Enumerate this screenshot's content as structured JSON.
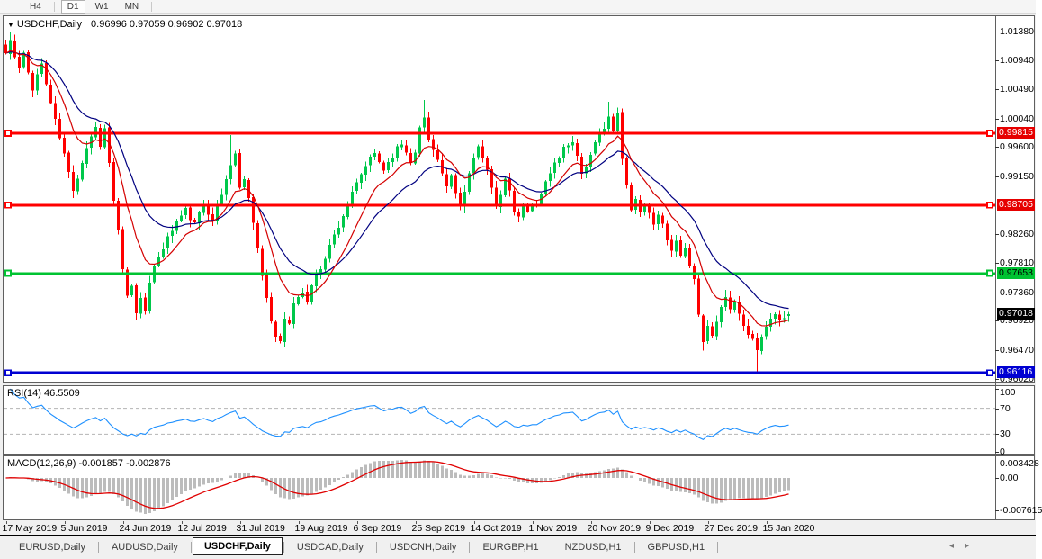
{
  "toolbar": {
    "items": [
      {
        "type": "button",
        "label": "H4",
        "active": false
      },
      {
        "type": "separator"
      },
      {
        "type": "button",
        "label": "D1",
        "active": true
      },
      {
        "type": "button",
        "label": "W1",
        "active": false
      },
      {
        "type": "button",
        "label": "MN",
        "active": false
      },
      {
        "type": "separator"
      }
    ]
  },
  "chart": {
    "menu_arrow": "▼",
    "title_symbol": "USDCHF,Daily",
    "title_ohlc": "0.96996 0.97059 0.96902 0.97018"
  },
  "panes": {
    "rsi_label": "RSI(14) 46.5509",
    "macd_label": "MACD(12,26,9) -0.001857 -0.002876"
  },
  "tabs": {
    "items": [
      {
        "label": "EURUSD,Daily",
        "active": false
      },
      {
        "label": "AUDUSD,Daily",
        "active": false
      },
      {
        "label": "USDCHF,Daily",
        "active": true
      },
      {
        "label": "USDCAD,Daily",
        "active": false
      },
      {
        "label": "USDCNH,Daily",
        "active": false
      },
      {
        "label": "EURGBP,H1",
        "active": false
      },
      {
        "label": "NZDUSD,H1",
        "active": false
      },
      {
        "label": "GBPUSD,H1",
        "active": false
      }
    ],
    "scroll_left": "◂",
    "scroll_right": "▸"
  },
  "chart_data": {
    "type": "candlestick",
    "symbol": "USDCHF",
    "period": "Daily",
    "last_bar": {
      "open": 0.96996,
      "high": 0.97059,
      "low": 0.96902,
      "close": 0.97018
    },
    "current_price": 0.97018,
    "price_axis": {
      "ticks": [
        {
          "label": "1.01380",
          "value": 1.0138
        },
        {
          "label": "1.00940",
          "value": 1.0094
        },
        {
          "label": "1.00490",
          "value": 1.0049
        },
        {
          "label": "1.00040",
          "value": 1.0004
        },
        {
          "label": "0.99600",
          "value": 0.996
        },
        {
          "label": "0.99150",
          "value": 0.9915
        },
        {
          "label": "0.98260",
          "value": 0.9826
        },
        {
          "label": "0.97810",
          "value": 0.9781
        },
        {
          "label": "0.97360",
          "value": 0.9736
        },
        {
          "label": "0.96920",
          "value": 0.9692
        },
        {
          "label": "0.96470",
          "value": 0.9647
        },
        {
          "label": "0.96020",
          "value": 0.9602
        }
      ],
      "badges": [
        {
          "label": "0.99815",
          "value": 0.99815,
          "bg": "#e60000",
          "fg": "#ffffff"
        },
        {
          "label": "0.98705",
          "value": 0.98705,
          "bg": "#e60000",
          "fg": "#ffffff"
        },
        {
          "label": "0.97653",
          "value": 0.97653,
          "bg": "#00c332",
          "fg": "#000000"
        },
        {
          "label": "0.97018",
          "value": 0.97018,
          "bg": "#000000",
          "fg": "#ffffff"
        },
        {
          "label": "0.96116",
          "value": 0.96116,
          "bg": "#0000d2",
          "fg": "#ffffff"
        }
      ]
    },
    "time_axis": {
      "labels": [
        {
          "label": "17 May 2019",
          "bar": 0
        },
        {
          "label": "5 Jun 2019",
          "bar": 13
        },
        {
          "label": "24 Jun 2019",
          "bar": 26
        },
        {
          "label": "12 Jul 2019",
          "bar": 39
        },
        {
          "label": "31 Jul 2019",
          "bar": 52
        },
        {
          "label": "19 Aug 2019",
          "bar": 65
        },
        {
          "label": "6 Sep 2019",
          "bar": 78
        },
        {
          "label": "25 Sep 2019",
          "bar": 91
        },
        {
          "label": "14 Oct 2019",
          "bar": 104
        },
        {
          "label": "1 Nov 2019",
          "bar": 117
        },
        {
          "label": "20 Nov 2019",
          "bar": 130
        },
        {
          "label": "9 Dec 2019",
          "bar": 143
        },
        {
          "label": "27 Dec 2019",
          "bar": 156
        },
        {
          "label": "15 Jan 2020",
          "bar": 169
        }
      ]
    },
    "levels": [
      {
        "name": "resistance-1",
        "value": 0.99815,
        "color": "#ff0000",
        "width": 3
      },
      {
        "name": "resistance-2",
        "value": 0.98705,
        "color": "#ff0000",
        "width": 3
      },
      {
        "name": "support-1",
        "value": 0.97653,
        "color": "#00c332",
        "width": 2.5
      },
      {
        "name": "support-2",
        "value": 0.96116,
        "color": "#0000d2",
        "width": 3.5
      }
    ],
    "moving_averages": [
      {
        "name": "fast",
        "type": "ema",
        "period": 10,
        "color": "#d40000"
      },
      {
        "name": "slow",
        "type": "ema",
        "period": 21,
        "color": "#000080"
      }
    ],
    "rsi": {
      "period": 14,
      "value": 46.5509,
      "range": [
        0,
        100
      ],
      "color": "#1e90ff",
      "guide_levels": [
        70,
        30
      ],
      "ticks": [
        {
          "label": "100",
          "value": 100
        },
        {
          "label": "70",
          "value": 70
        },
        {
          "label": "30",
          "value": 30
        },
        {
          "label": "0",
          "value": 0
        }
      ]
    },
    "macd": {
      "fast": 12,
      "slow": 26,
      "signal_period": 9,
      "value": -0.001857,
      "signal_value": -0.002876,
      "hist_color": "#bcbcbc",
      "signal_color": "#e00000",
      "ticks": [
        {
          "label": "0.003428",
          "value": 0.003428
        },
        {
          "label": "0.00",
          "value": 0
        },
        {
          "label": "-0.007615",
          "value": -0.007615
        }
      ]
    },
    "candle_colors": {
      "bull": "#00c84b",
      "bear": "#ff0000"
    },
    "generation": {
      "bars": 175,
      "seed": 11,
      "noise": 0.0011,
      "close_anchors": [
        [
          0,
          1.0105
        ],
        [
          1,
          1.0125
        ],
        [
          2,
          1.0098
        ],
        [
          3,
          1.0082
        ],
        [
          4,
          1.0102
        ],
        [
          5,
          1.0075
        ],
        [
          6,
          1.0052
        ],
        [
          7,
          1.0072
        ],
        [
          8,
          1.0088
        ],
        [
          9,
          1.0058
        ],
        [
          10,
          1.0028
        ],
        [
          11,
          1.0
        ],
        [
          12,
          0.9975
        ],
        [
          13,
          0.9948
        ],
        [
          14,
          0.992
        ],
        [
          15,
          0.9896
        ],
        [
          16,
          0.9915
        ],
        [
          17,
          0.9938
        ],
        [
          18,
          0.996
        ],
        [
          19,
          0.9978
        ],
        [
          20,
          0.999
        ],
        [
          21,
          0.9965
        ],
        [
          22,
          0.9988
        ],
        [
          23,
          0.9935
        ],
        [
          24,
          0.9878
        ],
        [
          25,
          0.9828
        ],
        [
          26,
          0.9768
        ],
        [
          27,
          0.9728
        ],
        [
          28,
          0.9748
        ],
        [
          29,
          0.9702
        ],
        [
          30,
          0.973
        ],
        [
          31,
          0.9712
        ],
        [
          32,
          0.9748
        ],
        [
          33,
          0.9772
        ],
        [
          34,
          0.9792
        ],
        [
          36,
          0.982
        ],
        [
          38,
          0.9845
        ],
        [
          40,
          0.9862
        ],
        [
          42,
          0.984
        ],
        [
          44,
          0.9872
        ],
        [
          46,
          0.985
        ],
        [
          48,
          0.9886
        ],
        [
          50,
          0.9935
        ],
        [
          51,
          0.995
        ],
        [
          52,
          0.9895
        ],
        [
          53,
          0.9915
        ],
        [
          54,
          0.988
        ],
        [
          55,
          0.9848
        ],
        [
          56,
          0.9805
        ],
        [
          57,
          0.976
        ],
        [
          58,
          0.9722
        ],
        [
          59,
          0.9692
        ],
        [
          60,
          0.9668
        ],
        [
          61,
          0.9662
        ],
        [
          62,
          0.97
        ],
        [
          63,
          0.9685
        ],
        [
          64,
          0.972
        ],
        [
          65,
          0.9726
        ],
        [
          66,
          0.9738
        ],
        [
          67,
          0.972
        ],
        [
          68,
          0.9748
        ],
        [
          70,
          0.9775
        ],
        [
          72,
          0.9808
        ],
        [
          74,
          0.984
        ],
        [
          76,
          0.987
        ],
        [
          78,
          0.9902
        ],
        [
          80,
          0.9932
        ],
        [
          82,
          0.995
        ],
        [
          84,
          0.9926
        ],
        [
          86,
          0.9948
        ],
        [
          88,
          0.9966
        ],
        [
          90,
          0.994
        ],
        [
          91,
          0.9956
        ],
        [
          92,
          0.9988
        ],
        [
          93,
          1.0005
        ],
        [
          94,
          0.9972
        ],
        [
          95,
          0.996
        ],
        [
          96,
          0.994
        ],
        [
          97,
          0.9918
        ],
        [
          98,
          0.9895
        ],
        [
          99,
          0.9912
        ],
        [
          100,
          0.9888
        ],
        [
          101,
          0.9868
        ],
        [
          102,
          0.989
        ],
        [
          103,
          0.992
        ],
        [
          104,
          0.9948
        ],
        [
          105,
          0.996
        ],
        [
          106,
          0.9942
        ],
        [
          107,
          0.992
        ],
        [
          108,
          0.9895
        ],
        [
          109,
          0.9872
        ],
        [
          110,
          0.989
        ],
        [
          111,
          0.991
        ],
        [
          112,
          0.9888
        ],
        [
          113,
          0.9862
        ],
        [
          114,
          0.9848
        ],
        [
          115,
          0.987
        ],
        [
          116,
          0.9858
        ],
        [
          117,
          0.9868
        ],
        [
          118,
          0.9875
        ],
        [
          120,
          0.9905
        ],
        [
          122,
          0.9935
        ],
        [
          124,
          0.9958
        ],
        [
          126,
          0.9972
        ],
        [
          128,
          0.992
        ],
        [
          130,
          0.9945
        ],
        [
          132,
          0.998
        ],
        [
          134,
          1.0008
        ],
        [
          135,
          0.9982
        ],
        [
          136,
          1.0013
        ],
        [
          137,
          0.994
        ],
        [
          138,
          0.99
        ],
        [
          139,
          0.9868
        ],
        [
          140,
          0.988
        ],
        [
          141,
          0.986
        ],
        [
          142,
          0.9872
        ],
        [
          143,
          0.9855
        ],
        [
          144,
          0.9845
        ],
        [
          145,
          0.986
        ],
        [
          146,
          0.9836
        ],
        [
          147,
          0.9815
        ],
        [
          148,
          0.9798
        ],
        [
          149,
          0.9812
        ],
        [
          150,
          0.9788
        ],
        [
          151,
          0.98
        ],
        [
          152,
          0.9782
        ],
        [
          153,
          0.976
        ],
        [
          154,
          0.97
        ],
        [
          155,
          0.966
        ],
        [
          156,
          0.9685
        ],
        [
          157,
          0.9668
        ],
        [
          158,
          0.9695
        ],
        [
          159,
          0.9718
        ],
        [
          160,
          0.9729
        ],
        [
          161,
          0.9712
        ],
        [
          162,
          0.9722
        ],
        [
          163,
          0.97
        ],
        [
          164,
          0.9685
        ],
        [
          165,
          0.9672
        ],
        [
          166,
          0.9663
        ],
        [
          167,
          0.9648
        ],
        [
          168,
          0.9662
        ],
        [
          169,
          0.9685
        ],
        [
          170,
          0.9696
        ],
        [
          171,
          0.9705
        ],
        [
          172,
          0.9692
        ],
        [
          173,
          0.9698
        ],
        [
          174,
          0.97018
        ]
      ],
      "forced": {
        "1": {
          "h": 1.0138
        },
        "20": {
          "h": 0.9998
        },
        "29": {
          "l": 0.9693
        },
        "50": {
          "h": 0.9979
        },
        "60": {
          "l": 0.9659
        },
        "93": {
          "h": 1.0033
        },
        "134": {
          "h": 1.003
        },
        "155": {
          "l": 0.9646
        },
        "167": {
          "l": 0.9613
        },
        "174": {
          "o": 0.96996,
          "h": 0.97059,
          "l": 0.96902,
          "c": 0.97018
        }
      }
    }
  }
}
